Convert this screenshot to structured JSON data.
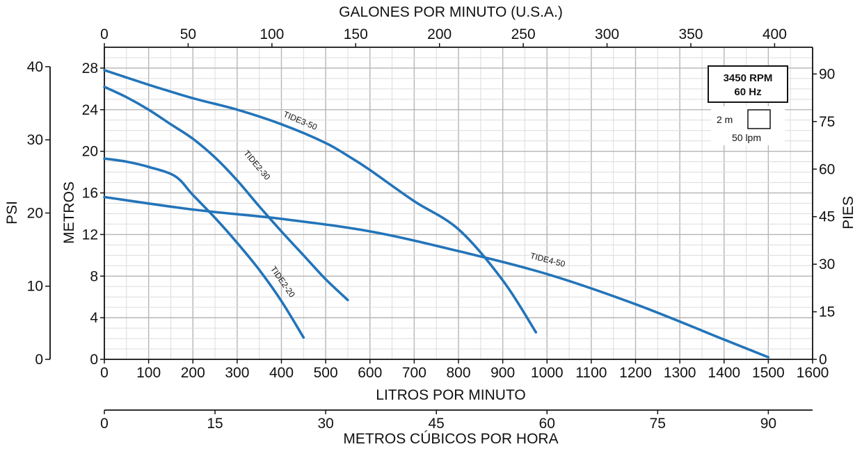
{
  "chart_data": {
    "type": "line",
    "xlabel": "LITROS POR MINUTO",
    "ylabel": "METROS",
    "xlim": [
      0,
      1600
    ],
    "ylim": [
      0,
      30
    ],
    "x_ticks": [
      0,
      100,
      200,
      300,
      400,
      500,
      600,
      700,
      800,
      900,
      1000,
      1100,
      1200,
      1300,
      1400,
      1500,
      1600
    ],
    "y_ticks": [
      0,
      4,
      8,
      12,
      16,
      20,
      24,
      28
    ],
    "grid": true,
    "top_axis": {
      "label": "GALONES POR MINUTO (U.S.A.)",
      "ticks": [
        0,
        50,
        100,
        150,
        200,
        250,
        300,
        350,
        400
      ],
      "per_lpm": 0.264172
    },
    "bottom_axis": {
      "label": "METROS CÚBICOS POR HORA",
      "ticks": [
        0,
        15,
        30,
        45,
        60,
        75,
        90
      ],
      "per_lpm": 0.06
    },
    "psi_axis": {
      "label": "PSI",
      "ticks": [
        0,
        10,
        20,
        30,
        40
      ],
      "per_m": 1.4219
    },
    "pies_axis": {
      "label": "PIES",
      "ticks": [
        0,
        15,
        30,
        45,
        60,
        75,
        90
      ],
      "per_m": 3.28084
    },
    "series": [
      {
        "name": "TIDE2-20",
        "color": "#2374b9",
        "x": [
          0,
          50,
          100,
          160,
          200,
          250,
          300,
          350,
          400,
          450
        ],
        "y": [
          19.3,
          19.0,
          18.5,
          17.6,
          15.8,
          13.6,
          11.2,
          8.6,
          5.6,
          2.1
        ]
      },
      {
        "name": "TIDE2-30",
        "color": "#2374b9",
        "x": [
          0,
          50,
          100,
          150,
          200,
          250,
          300,
          350,
          400,
          450,
          500,
          550
        ],
        "y": [
          26.2,
          25.2,
          24.0,
          22.6,
          21.2,
          19.4,
          17.2,
          14.7,
          12.3,
          10.0,
          7.7,
          5.7
        ]
      },
      {
        "name": "TIDE3-50",
        "color": "#2374b9",
        "x": [
          0,
          100,
          200,
          300,
          400,
          500,
          560,
          600,
          700,
          800,
          900,
          975
        ],
        "y": [
          27.8,
          26.4,
          25.1,
          24.0,
          22.6,
          20.8,
          19.3,
          18.2,
          15.2,
          12.5,
          7.6,
          2.6
        ]
      },
      {
        "name": "TIDE4-50",
        "color": "#2374b9",
        "x": [
          0,
          200,
          400,
          600,
          800,
          1000,
          1200,
          1400,
          1500
        ],
        "y": [
          15.6,
          14.4,
          13.5,
          12.3,
          10.4,
          8.2,
          5.3,
          1.9,
          0.2
        ]
      }
    ],
    "annotations": {
      "rpm": "3450 RPM",
      "hz": "60 Hz",
      "scale_head": "2 m",
      "scale_flow": "50 lpm"
    }
  }
}
